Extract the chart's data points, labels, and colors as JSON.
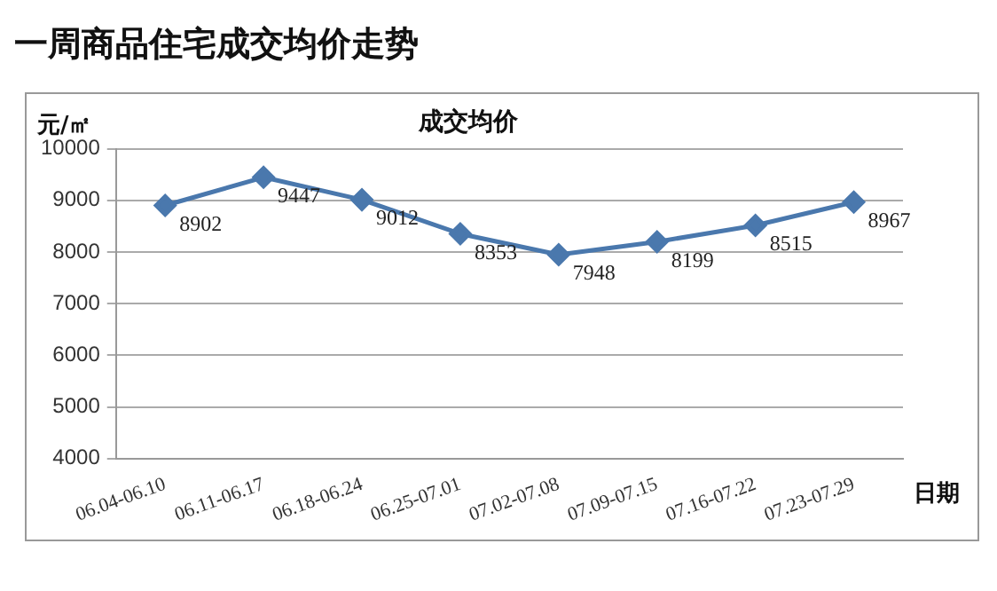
{
  "chart_data": {
    "type": "line",
    "title": "一周商品住宅成交均价走势",
    "subtitle": "成交均价",
    "ylabel": "元/㎡",
    "xlabel": "日期",
    "categories": [
      "06.04-06.10",
      "06.11-06.17",
      "06.18-06.24",
      "06.25-07.01",
      "07.02-07.08",
      "07.09-07.15",
      "07.16-07.22",
      "07.23-07.29"
    ],
    "series": [
      {
        "color": "#4a78ad",
        "values": [
          8902,
          9447,
          9012,
          8353,
          7948,
          8199,
          8515,
          8967
        ]
      }
    ],
    "ylim": [
      4000,
      10000
    ],
    "yticks": [
      4000,
      5000,
      6000,
      7000,
      8000,
      9000,
      10000
    ],
    "grid": "y",
    "legend": false,
    "marker": "diamond",
    "line_style": "solid",
    "data_labels": true
  }
}
